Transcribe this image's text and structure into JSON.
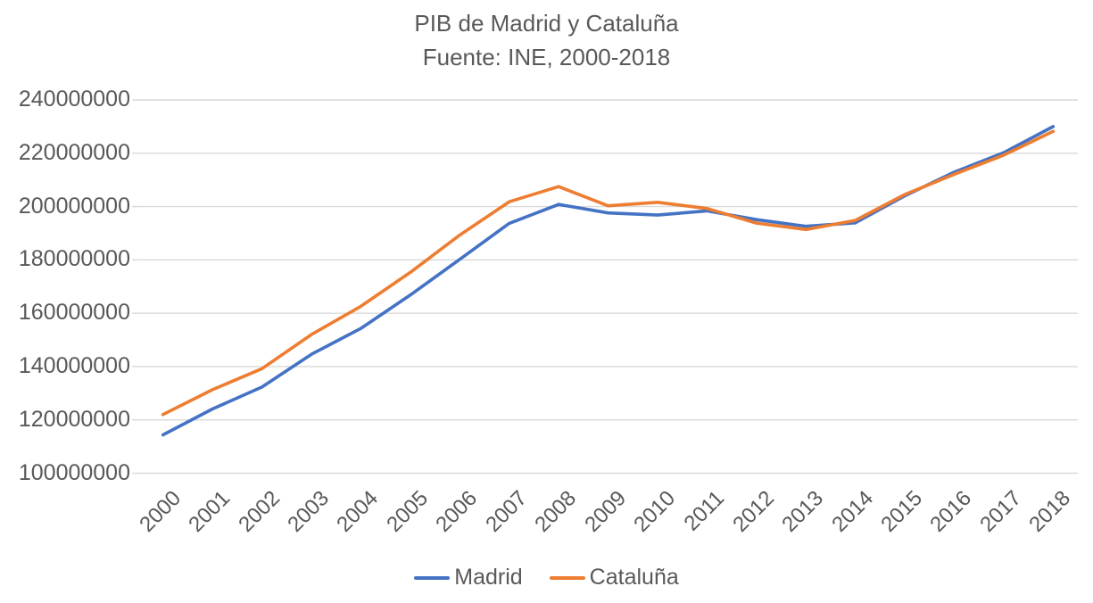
{
  "title": {
    "line1": "PIB de Madrid y Cataluña",
    "line2": "Fuente: INE, 2000-2018"
  },
  "chart_data": {
    "type": "line",
    "title": "PIB de Madrid y Cataluña",
    "subtitle": "Fuente: INE, 2000-2018",
    "xlabel": "",
    "ylabel": "",
    "x": [
      "2000",
      "2001",
      "2002",
      "2003",
      "2004",
      "2005",
      "2006",
      "2007",
      "2008",
      "2009",
      "2010",
      "2011",
      "2012",
      "2013",
      "2014",
      "2015",
      "2016",
      "2017",
      "2018"
    ],
    "series": [
      {
        "name": "Madrid",
        "color": "#4472C4",
        "values": [
          114400000,
          124100000,
          132300000,
          144600000,
          154300000,
          166800000,
          180200000,
          193700000,
          200800000,
          197600000,
          196800000,
          198400000,
          195100000,
          192600000,
          193900000,
          204000000,
          212900000,
          220200000,
          230000000
        ]
      },
      {
        "name": "Cataluña",
        "color": "#ED7D31",
        "values": [
          122000000,
          131300000,
          139200000,
          152000000,
          162600000,
          175300000,
          189300000,
          201800000,
          207500000,
          200300000,
          201600000,
          199300000,
          193800000,
          191400000,
          194800000,
          204500000,
          212100000,
          219300000,
          228200000
        ]
      }
    ],
    "ylim": [
      100000000,
      240000000
    ],
    "ytick_interval": 20000000,
    "ytick_labels": [
      "100000000",
      "120000000",
      "140000000",
      "160000000",
      "180000000",
      "200000000",
      "220000000",
      "240000000"
    ],
    "grid": "horizontal",
    "gridline_color": "#D9D9D9",
    "tick_color": "#D9D9D9",
    "text_color": "#595959",
    "legend_position": "bottom",
    "legend": [
      "Madrid",
      "Cataluña"
    ]
  }
}
